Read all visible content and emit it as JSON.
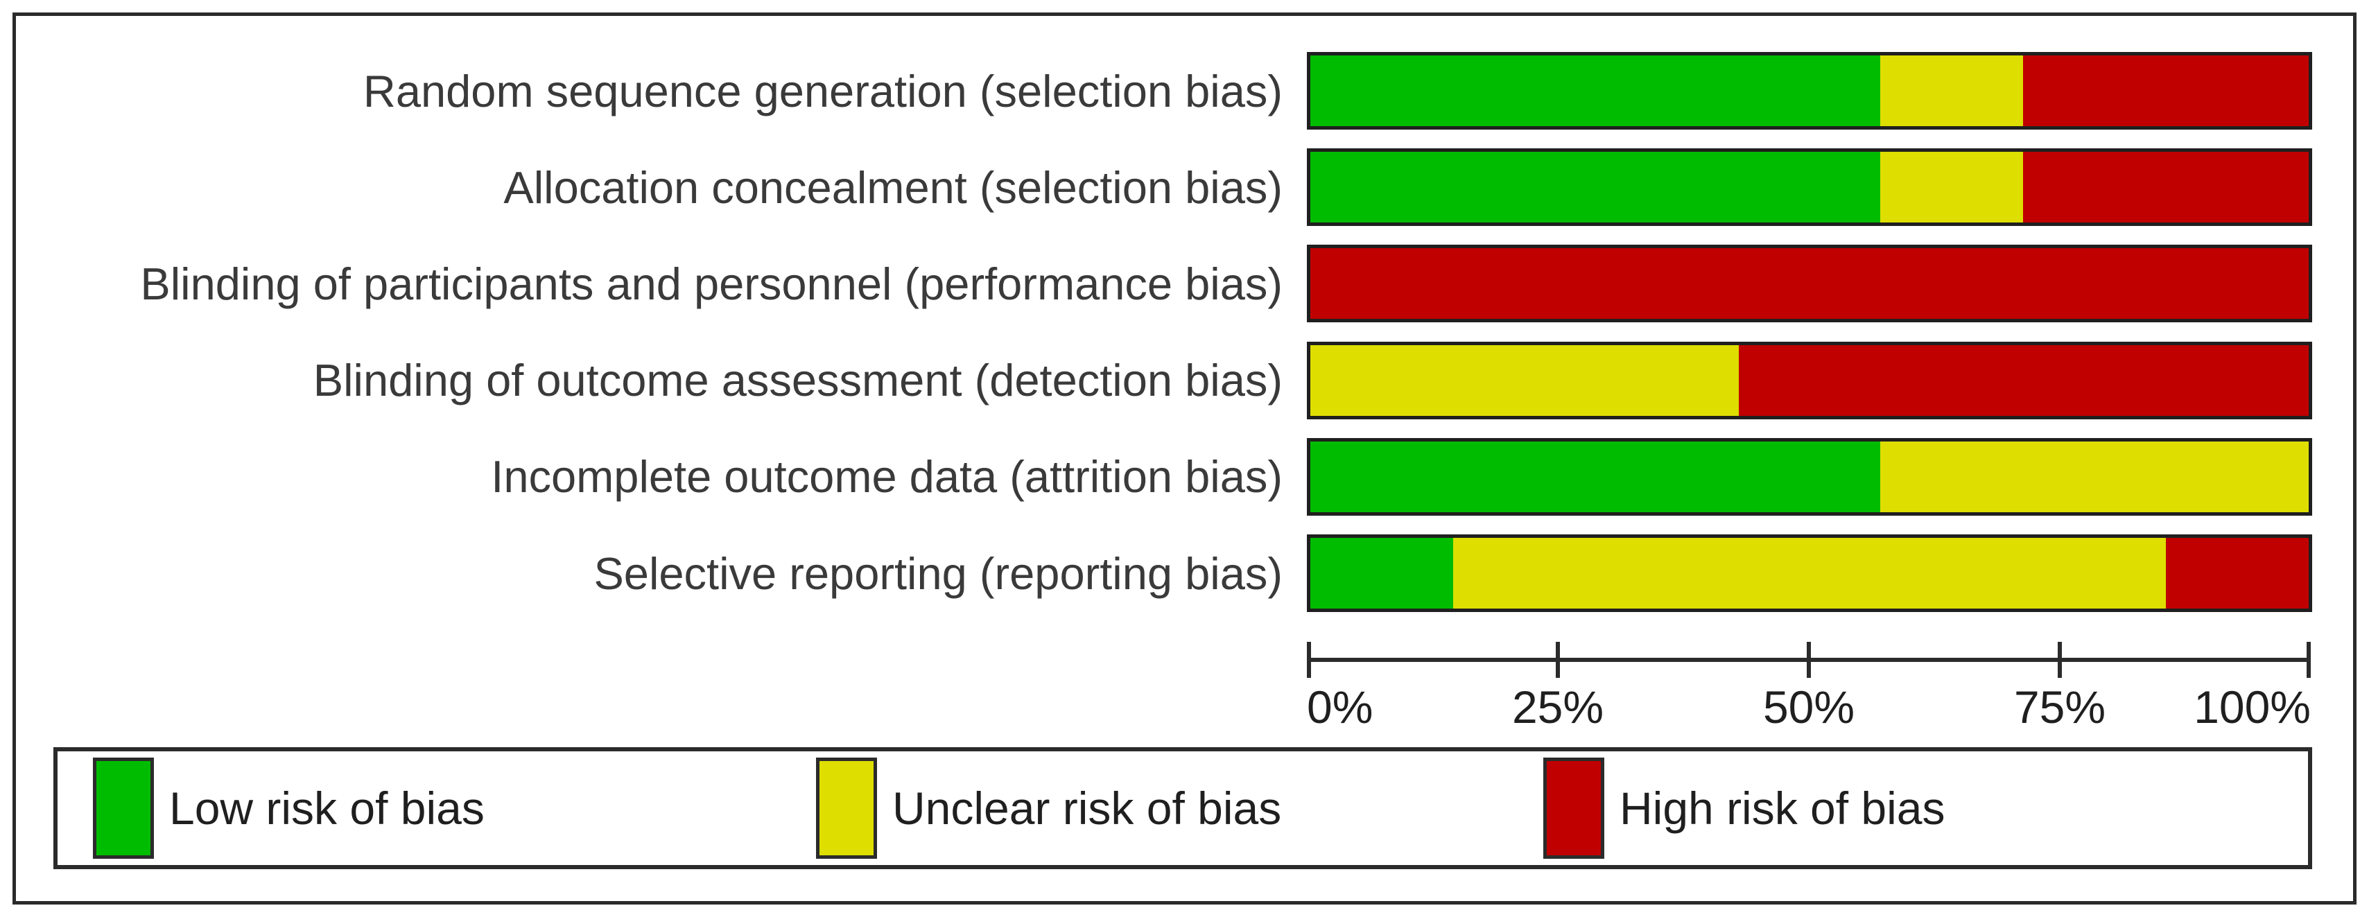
{
  "figure": {
    "background": "#ffffff",
    "frame_color": "#2b2b2b",
    "bar_border_color": "#1f1f1f",
    "label_color": "#3a3a3a"
  },
  "chart_data": {
    "type": "bar",
    "variant": "horizontal-stacked",
    "title": "",
    "xlabel": "",
    "ylabel": "",
    "xlim": [
      0,
      100
    ],
    "grid": false,
    "legend_position": "bottom",
    "categories": [
      "Random sequence generation (selection bias)",
      "Allocation concealment (selection bias)",
      "Blinding of participants and personnel (performance bias)",
      "Blinding of outcome assessment (detection bias)",
      "Incomplete outcome data (attrition bias)",
      "Selective reporting (reporting bias)"
    ],
    "series": [
      {
        "key": "low",
        "name": "Low risk of bias",
        "color": "#00bc00",
        "values": [
          57.1,
          57.1,
          0,
          0,
          57.1,
          14.3
        ]
      },
      {
        "key": "unclear",
        "name": "Unclear risk of bias",
        "color": "#dede00",
        "values": [
          14.3,
          14.3,
          0,
          42.9,
          42.9,
          71.4
        ]
      },
      {
        "key": "high",
        "name": "High risk of bias",
        "color": "#c00000",
        "values": [
          28.6,
          28.6,
          100,
          57.1,
          0,
          14.3
        ]
      }
    ],
    "x_ticks": [
      "0%",
      "25%",
      "50%",
      "75%",
      "100%"
    ],
    "x_tick_positions": [
      0,
      25,
      50,
      75,
      100
    ]
  },
  "legend": {
    "items": [
      {
        "label": "Low risk of bias",
        "color": "#00bc00"
      },
      {
        "label": "Unclear risk of bias",
        "color": "#dede00"
      },
      {
        "label": "High risk of bias",
        "color": "#c00000"
      }
    ]
  }
}
